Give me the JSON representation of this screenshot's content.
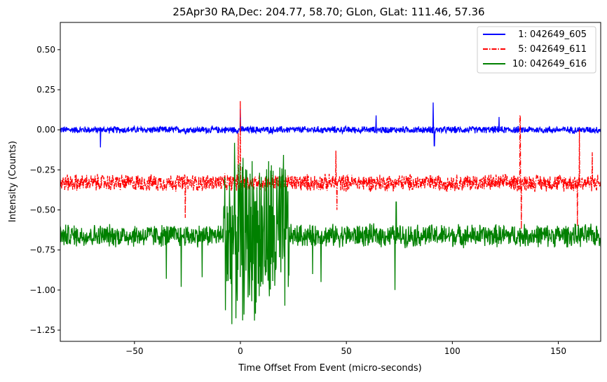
{
  "chart_data": {
    "type": "line",
    "title": "25Apr30 RA,Dec:  204.77,  58.70; GLon, GLat:  111.46,  57.36",
    "xlabel": "Time Offset From Event (micro-seconds)",
    "ylabel": "Intensity (Counts)",
    "xlim": [
      -85,
      170
    ],
    "ylim": [
      -1.32,
      0.67
    ],
    "xticks": [
      -50,
      0,
      50,
      100,
      150
    ],
    "xtick_labels": [
      "−50",
      "0",
      "50",
      "100",
      "150"
    ],
    "yticks": [
      0.5,
      0.25,
      0.0,
      -0.25,
      -0.5,
      -0.75,
      -1.0,
      -1.25
    ],
    "ytick_labels": [
      "0.50",
      "0.25",
      "0.00",
      "−0.25",
      "−0.50",
      "−0.75",
      "−1.00",
      "−1.25"
    ],
    "legend_position": "top-right",
    "series": [
      {
        "name": "1: 042649_605",
        "legend_label": "  1: 042649_605",
        "color": "#0000ff",
        "dash": "solid",
        "baseline": 0.0,
        "noise_amplitude": 0.025,
        "spikes": [
          {
            "x": -66,
            "value": -0.11
          },
          {
            "x": 0,
            "value": 0.13
          },
          {
            "x": 64,
            "value": 0.09
          },
          {
            "x": 91,
            "value": 0.17
          },
          {
            "x": 91.5,
            "value": -0.1
          },
          {
            "x": 122,
            "value": 0.08
          }
        ]
      },
      {
        "name": "5: 042649_611",
        "legend_label": "  5: 042649_611",
        "color": "#ff0000",
        "dash": "dashdot",
        "baseline": -0.33,
        "noise_amplitude": 0.06,
        "spikes": [
          {
            "x": 0,
            "value": 0.18
          },
          {
            "x": -1,
            "value": -0.02
          },
          {
            "x": -26,
            "value": -0.55
          },
          {
            "x": 45,
            "value": -0.13
          },
          {
            "x": 45.5,
            "value": -0.5
          },
          {
            "x": 132,
            "value": 0.09
          },
          {
            "x": 132.5,
            "value": -0.62
          },
          {
            "x": 159,
            "value": -0.6
          },
          {
            "x": 160,
            "value": 0.0
          },
          {
            "x": 166,
            "value": -0.14
          }
        ]
      },
      {
        "name": "10: 042649_616",
        "legend_label": "10: 042649_616",
        "color": "#008000",
        "dash": "solid",
        "baseline": -0.66,
        "noise_amplitude": 0.08,
        "burst": {
          "start": -8,
          "end": 23,
          "min": -1.23,
          "max": -0.06
        },
        "spikes": [
          {
            "x": -35,
            "value": -0.93
          },
          {
            "x": -28,
            "value": -0.98
          },
          {
            "x": -18,
            "value": -0.92
          },
          {
            "x": 34,
            "value": -0.9
          },
          {
            "x": 38,
            "value": -0.95
          },
          {
            "x": 73,
            "value": -1.0
          },
          {
            "x": 73.5,
            "value": -0.45
          }
        ]
      }
    ]
  }
}
